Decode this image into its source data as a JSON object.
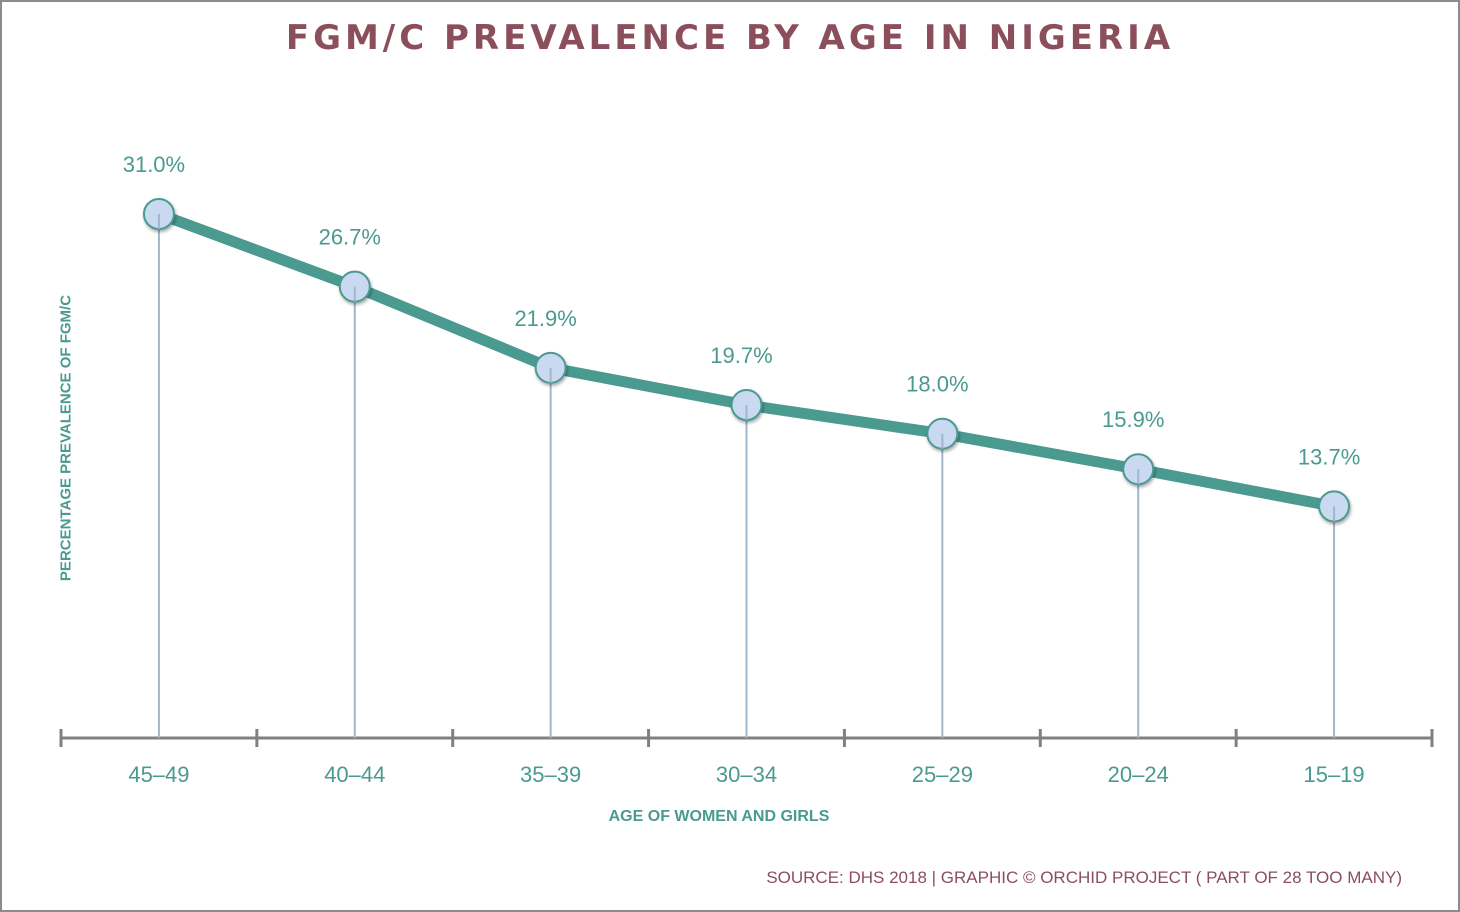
{
  "chart_data": {
    "type": "line",
    "title": "FGM/C PREVALENCE BY AGE IN NIGERIA",
    "xlabel": "AGE OF WOMEN AND GIRLS",
    "ylabel": "PERCENTAGE PREVALENCE OF FGM/C",
    "categories": [
      "45–49",
      "40–44",
      "35–39",
      "30–34",
      "25–29",
      "20–24",
      "15–19"
    ],
    "series": [
      {
        "name": "FGM/C prevalence",
        "values": [
          31.0,
          26.7,
          21.9,
          19.7,
          18.0,
          15.9,
          13.7
        ],
        "labels": [
          "31.0%",
          "26.7%",
          "21.9%",
          "19.7%",
          "18.0%",
          "15.9%",
          "13.7%"
        ]
      }
    ],
    "ylim": [
      0,
      31
    ],
    "grid": false,
    "legend": "none",
    "source": "SOURCE: DHS 2018 | GRAPHIC © ORCHID PROJECT ( PART OF 28 TOO MANY)"
  },
  "colors": {
    "title": "#8b4f5c",
    "line": "#4a9a90",
    "marker_fill": "#c9d9ef",
    "marker_stroke": "#4a9a90",
    "drop_line": "#9fb6cc",
    "axis": "#808080",
    "text": "#4a9a90"
  }
}
